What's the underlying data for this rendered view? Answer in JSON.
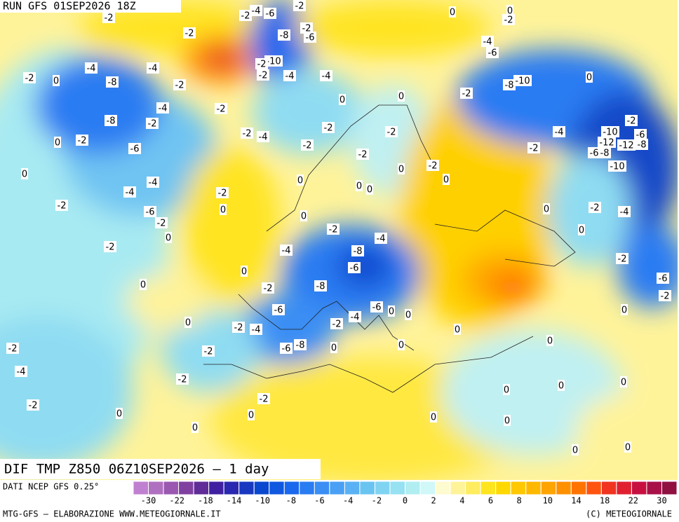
{
  "header": {
    "run": "RUN GFS 01SEP2026 18Z"
  },
  "map": {
    "title": "DIF TMP Z850 06Z10SEP2026 – 1 day",
    "contour_labels": [
      -2,
      -2,
      -4,
      -6,
      -2,
      0,
      0,
      -2,
      -2,
      -8,
      -2,
      -6,
      -4,
      -6,
      -2,
      0,
      -4,
      -8,
      -4,
      -10,
      -2,
      -2,
      -4,
      -4,
      -2,
      -10,
      -8,
      0,
      0,
      -2,
      0,
      -4,
      -2,
      -8,
      -2,
      -2,
      0,
      -6,
      -2,
      -4,
      -2,
      -2,
      -2,
      -4,
      -2,
      -10,
      -6,
      -12,
      -12,
      -8,
      -2,
      -6,
      -8,
      -10,
      0,
      -2,
      -2,
      0,
      0,
      0,
      0,
      0,
      -4,
      -4,
      -2,
      -2,
      0,
      -6,
      0,
      -2,
      -4,
      -2,
      0,
      0,
      -2,
      -4,
      0,
      -2,
      -4,
      -8,
      -6,
      0,
      -8,
      -2,
      0,
      -2,
      -6,
      -2,
      -6,
      -6,
      0,
      -4,
      -2,
      0,
      0,
      -2,
      -4,
      0,
      0,
      -2,
      -2,
      -6,
      -8,
      0,
      0,
      0,
      -4,
      -2,
      0,
      0,
      0,
      -2,
      -2,
      0,
      0,
      0,
      0,
      0,
      0,
      0
    ]
  },
  "colorbar": {
    "source": "DATI NCEP GFS 0.25°",
    "ticks": [
      -30,
      -22,
      -18,
      -14,
      -10,
      -8,
      -6,
      -4,
      -2,
      0,
      2,
      4,
      6,
      8,
      10,
      14,
      18,
      22,
      30
    ],
    "colors": [
      "#c080d0",
      "#b070c0",
      "#9a58b0",
      "#8040a0",
      "#602c98",
      "#4020a0",
      "#2a28b0",
      "#1838c0",
      "#0a48d0",
      "#1058e0",
      "#1a68ee",
      "#2a7cf2",
      "#3a8ef4",
      "#4aa0f4",
      "#5ab2f4",
      "#6ac4f2",
      "#80d4f2",
      "#96e2f2",
      "#b0eef2",
      "#d0f8f8",
      "#fffbd0",
      "#fff39a",
      "#ffec60",
      "#ffe420",
      "#ffd800",
      "#ffc800",
      "#ffb800",
      "#ffa400",
      "#ff9000",
      "#ff7400",
      "#ff5410",
      "#f03420",
      "#e02030",
      "#c81040",
      "#a81048",
      "#901040"
    ]
  },
  "footer": {
    "left": "MTG-GFS – ELABORAZIONE WWW.METEOGIORNALE.IT",
    "right": "(C) METEOGIORNALE"
  }
}
